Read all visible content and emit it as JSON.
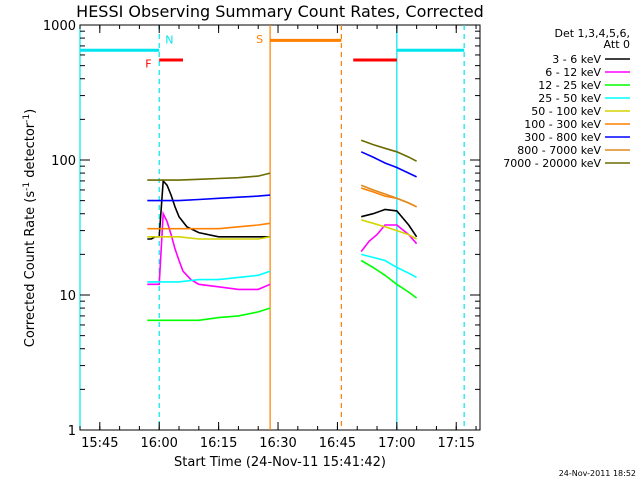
{
  "chart_data": {
    "type": "line",
    "title": "HESSI Observing Summary Count Rates, Corrected",
    "xlabel": "Start Time (24-Nov-11 15:41:42)",
    "ylabel_main": "Corrected Count Rate (s",
    "ylabel_sup1": "-1",
    "ylabel_mid": " detector",
    "ylabel_sup2": "-1",
    "ylabel_end": ")",
    "y_scale": "log",
    "ylim": [
      1,
      1000
    ],
    "xlim": [
      "15:40",
      "17:21"
    ],
    "x_ticks": [
      "15:45",
      "16:00",
      "16:15",
      "16:30",
      "16:45",
      "17:00",
      "17:15"
    ],
    "y_ticks": [
      {
        "value": 1,
        "label": "1"
      },
      {
        "value": 10,
        "label": "10"
      },
      {
        "value": 100,
        "label": "100"
      },
      {
        "value": 1000,
        "label": "1000"
      }
    ],
    "legend_header": [
      "Det 1,3,4,5,6,",
      "Att 0"
    ],
    "legend_placement": "top-right-outside",
    "series": [
      {
        "name": "3 - 6 keV",
        "color": "#000000",
        "segments": [
          {
            "x": [
              "15:57",
              "15:58",
              "15:59",
              "16:00",
              "16:01",
              "16:02",
              "16:03",
              "16:04",
              "16:05",
              "16:07",
              "16:10",
              "16:15",
              "16:20",
              "16:25",
              "16:28"
            ],
            "y": [
              26,
              26,
              27,
              27,
              70,
              65,
              55,
              45,
              38,
              32,
              29,
              27,
              27,
              27,
              27
            ]
          },
          {
            "x": [
              "16:51",
              "16:54",
              "16:57",
              "17:00",
              "17:03",
              "17:05"
            ],
            "y": [
              38,
              40,
              43,
              42,
              33,
              27
            ]
          }
        ]
      },
      {
        "name": "6 - 12 keV",
        "color": "#ff00ff",
        "segments": [
          {
            "x": [
              "15:57",
              "15:58",
              "16:00",
              "16:01",
              "16:02",
              "16:03",
              "16:04",
              "16:05",
              "16:06",
              "16:08",
              "16:10",
              "16:15",
              "16:20",
              "16:25",
              "16:28"
            ],
            "y": [
              12,
              12,
              12,
              40,
              35,
              28,
              22,
              18,
              15,
              13,
              12,
              11.5,
              11,
              11,
              12
            ]
          },
          {
            "x": [
              "16:51",
              "16:53",
              "16:55",
              "16:57",
              "17:00",
              "17:03",
              "17:05"
            ],
            "y": [
              21,
              25,
              28,
              33,
              33,
              28,
              24
            ]
          }
        ]
      },
      {
        "name": "12 - 25 keV",
        "color": "#00ff00",
        "segments": [
          {
            "x": [
              "15:57",
              "16:00",
              "16:05",
              "16:10",
              "16:15",
              "16:20",
              "16:25",
              "16:28"
            ],
            "y": [
              6.5,
              6.5,
              6.5,
              6.5,
              6.8,
              7,
              7.5,
              8
            ]
          },
          {
            "x": [
              "16:51",
              "16:54",
              "16:57",
              "17:00",
              "17:03",
              "17:05"
            ],
            "y": [
              18,
              16,
              14,
              12,
              10.5,
              9.5
            ]
          }
        ]
      },
      {
        "name": "25 - 50 keV",
        "color": "#00ffff",
        "segments": [
          {
            "x": [
              "15:57",
              "16:00",
              "16:05",
              "16:10",
              "16:15",
              "16:20",
              "16:25",
              "16:28"
            ],
            "y": [
              12.5,
              12.5,
              12.5,
              13,
              13,
              13.5,
              14,
              15
            ]
          },
          {
            "x": [
              "16:51",
              "16:54",
              "16:57",
              "17:00",
              "17:03",
              "17:05"
            ],
            "y": [
              20,
              19,
              18,
              16,
              14.5,
              13.5
            ]
          }
        ]
      },
      {
        "name": "50 - 100 keV",
        "color": "#d4d400",
        "segments": [
          {
            "x": [
              "15:57",
              "16:00",
              "16:05",
              "16:10",
              "16:15",
              "16:20",
              "16:25",
              "16:28"
            ],
            "y": [
              27,
              27,
              27,
              26,
              26,
              26,
              26,
              27
            ]
          },
          {
            "x": [
              "16:51",
              "16:54",
              "16:57",
              "17:00",
              "17:03",
              "17:05"
            ],
            "y": [
              36,
              34,
              32,
              30,
              28,
              26
            ]
          }
        ]
      },
      {
        "name": "100 - 300 keV",
        "color": "#ff8000",
        "segments": [
          {
            "x": [
              "15:57",
              "16:00",
              "16:05",
              "16:10",
              "16:15",
              "16:20",
              "16:25",
              "16:28"
            ],
            "y": [
              31,
              31,
              31,
              31,
              31,
              32,
              33,
              34
            ]
          },
          {
            "x": [
              "16:51",
              "16:54",
              "16:57",
              "17:00",
              "17:03",
              "17:05"
            ],
            "y": [
              62,
              58,
              54,
              52,
              48,
              45
            ]
          }
        ]
      },
      {
        "name": "300 - 800 keV",
        "color": "#0000ff",
        "segments": [
          {
            "x": [
              "15:57",
              "16:00",
              "16:05",
              "16:10",
              "16:15",
              "16:20",
              "16:25",
              "16:28"
            ],
            "y": [
              50,
              50,
              50,
              51,
              52,
              53,
              54,
              55
            ]
          },
          {
            "x": [
              "16:51",
              "16:54",
              "16:57",
              "17:00",
              "17:03",
              "17:05"
            ],
            "y": [
              115,
              105,
              95,
              88,
              80,
              75
            ]
          }
        ]
      },
      {
        "name": "800 - 7000 keV",
        "color": "#e08a1e",
        "segments": [
          {
            "x": [
              "16:51",
              "16:54",
              "16:57",
              "17:00",
              "17:03",
              "17:05"
            ],
            "y": [
              65,
              60,
              56,
              52,
              48,
              45
            ]
          }
        ]
      },
      {
        "name": "7000 - 20000 keV",
        "color": "#6b6b00",
        "segments": [
          {
            "x": [
              "15:57",
              "16:00",
              "16:05",
              "16:10",
              "16:15",
              "16:20",
              "16:25",
              "16:28"
            ],
            "y": [
              71,
              71,
              71,
              72,
              73,
              74,
              76,
              80
            ]
          },
          {
            "x": [
              "16:51",
              "16:54",
              "16:57",
              "17:00",
              "17:03",
              "17:05"
            ],
            "y": [
              140,
              130,
              122,
              115,
              105,
              98
            ]
          }
        ]
      }
    ],
    "top_series_color": "#ff0000",
    "flag_bars": [
      {
        "label": "N",
        "color": "#00e5ee",
        "start": "15:40",
        "end": "16:00",
        "y": 650,
        "label_at": "16:00",
        "label_y": 780
      },
      {
        "label": "F",
        "color": "#ff0000",
        "start": "16:00",
        "end": "16:06",
        "y": 550,
        "label_at": "15:59",
        "label_y": 520
      },
      {
        "label": "S",
        "color": "#ff8000",
        "start": "16:28",
        "end": "16:46",
        "y": 770,
        "label_at": "16:27",
        "label_y": 790
      },
      {
        "label": "",
        "color": "#ff0000",
        "start": "16:49",
        "end": "17:00",
        "y": 550
      },
      {
        "label": "",
        "color": "#00e5ee",
        "start": "17:00",
        "end": "17:17",
        "y": 650
      }
    ],
    "vertical_lines": [
      {
        "x": "15:40",
        "color": "#00e5ee",
        "style": "solid"
      },
      {
        "x": "16:00",
        "color": "#00e5ee",
        "style": "dashed"
      },
      {
        "x": "16:28",
        "color": "#ff8000",
        "style": "solid"
      },
      {
        "x": "16:46",
        "color": "#ff8000",
        "style": "dashed"
      },
      {
        "x": "17:00",
        "color": "#00e5ee",
        "style": "solid"
      },
      {
        "x": "17:17",
        "color": "#00e5ee",
        "style": "dashed"
      }
    ],
    "grid": false
  },
  "footer_date": "24-Nov-2011 18:52"
}
